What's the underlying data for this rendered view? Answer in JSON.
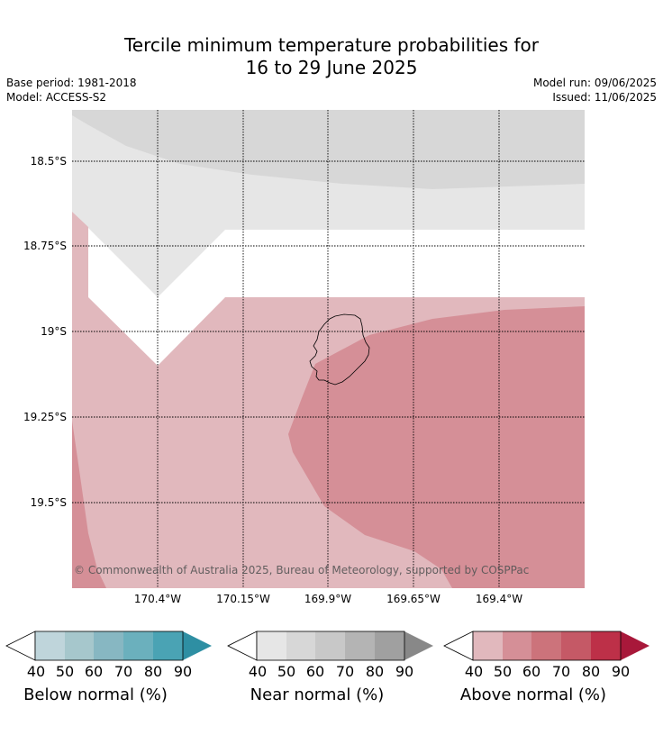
{
  "title": {
    "line1": "Tercile minimum temperature probabilities for",
    "line2": "16 to 29 June 2025"
  },
  "meta": {
    "base_period": "Base period: 1981-2018",
    "model": "Model: ACCESS-S2",
    "model_run": "Model run: 09/06/2025",
    "issued": "Issued: 11/06/2025"
  },
  "map": {
    "lat_labels": [
      "18.5°S",
      "18.75°S",
      "19°S",
      "19.25°S",
      "19.5°S"
    ],
    "lon_labels": [
      "170.4°W",
      "170.15°W",
      "169.9°W",
      "169.65°W",
      "169.4°W"
    ],
    "copyright": "© Commonwealth of Australia 2025, Bureau of Meteorology, supported by COSPPac",
    "colors": {
      "near_40": "#e6e6e6",
      "near_50": "#d7d7d7",
      "above_40": "#e1b8bd",
      "above_50": "#d58f97",
      "coast": "#000000"
    }
  },
  "legends": [
    {
      "caption": "Below normal (%)",
      "ticks": [
        "40",
        "50",
        "60",
        "70",
        "80",
        "90"
      ],
      "colors": [
        "#bfd5db",
        "#a6c7cc",
        "#87b7c2",
        "#6bb0bd",
        "#4aa3b4",
        "#2e8fa3"
      ]
    },
    {
      "caption": "Near normal (%)",
      "ticks": [
        "40",
        "50",
        "60",
        "70",
        "80",
        "90"
      ],
      "colors": [
        "#e6e6e6",
        "#d7d7d7",
        "#c8c8c8",
        "#b4b4b4",
        "#a0a0a0",
        "#888888"
      ]
    },
    {
      "caption": "Above normal (%)",
      "ticks": [
        "40",
        "50",
        "60",
        "70",
        "80",
        "90"
      ],
      "colors": [
        "#e1b8bd",
        "#d58f97",
        "#cc737b",
        "#c55966",
        "#bd3048",
        "#a8183a"
      ]
    }
  ]
}
